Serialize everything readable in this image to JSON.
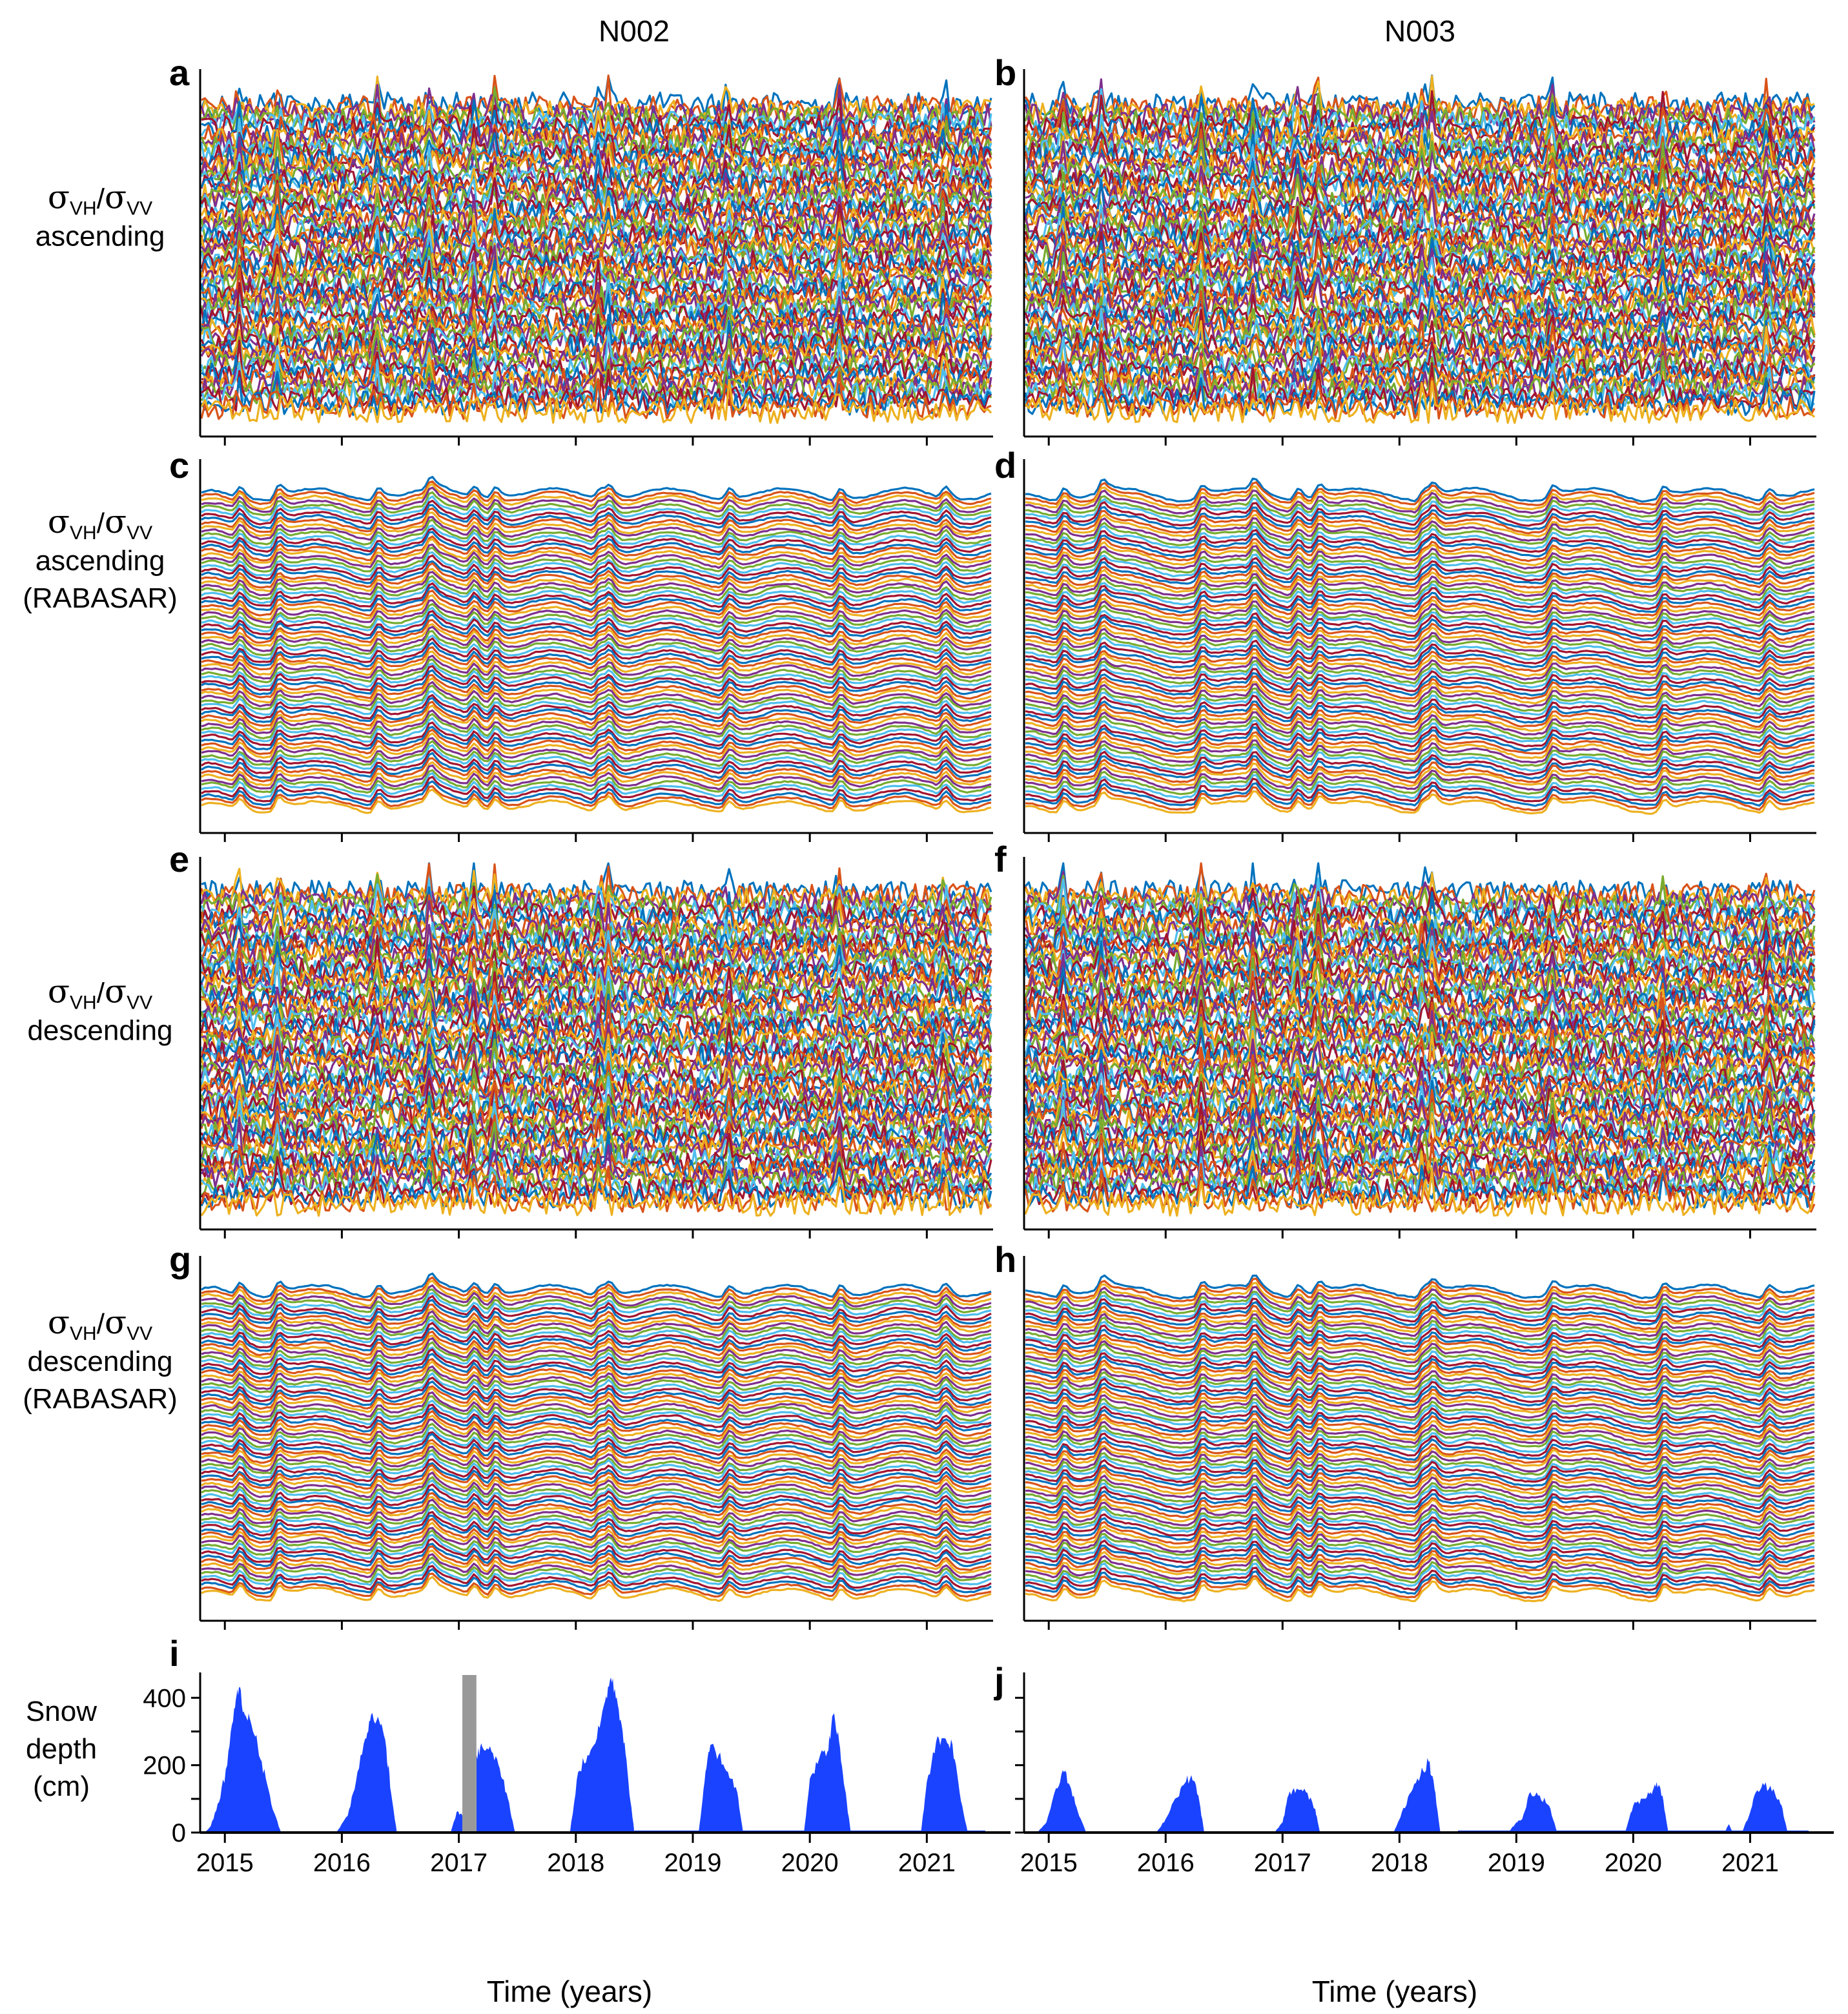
{
  "columns": [
    "N002",
    "N003"
  ],
  "chart_data": [
    {
      "panel": "a",
      "column": "N002",
      "type": "line",
      "ylabel_lines": [
        "σVH/σVV",
        "ascending"
      ],
      "series_count": 80,
      "xlim": [
        2014.8,
        2021.55
      ],
      "style": "raw"
    },
    {
      "panel": "b",
      "column": "N003",
      "type": "line",
      "ylabel_lines": [],
      "series_count": 80,
      "xlim": [
        2014.8,
        2021.55
      ],
      "style": "raw"
    },
    {
      "panel": "c",
      "column": "N002",
      "type": "line",
      "ylabel_lines": [
        "σVH/σVV",
        "ascending",
        "(RABASAR)"
      ],
      "series_count": 80,
      "xlim": [
        2014.8,
        2021.55
      ],
      "style": "filtered"
    },
    {
      "panel": "d",
      "column": "N003",
      "type": "line",
      "ylabel_lines": [],
      "series_count": 80,
      "xlim": [
        2014.8,
        2021.55
      ],
      "style": "filtered"
    },
    {
      "panel": "e",
      "column": "N002",
      "type": "line",
      "ylabel_lines": [
        "σVH/σVV",
        "descending"
      ],
      "series_count": 80,
      "xlim": [
        2014.8,
        2021.55
      ],
      "style": "raw"
    },
    {
      "panel": "f",
      "column": "N003",
      "type": "line",
      "ylabel_lines": [],
      "series_count": 80,
      "xlim": [
        2014.8,
        2021.55
      ],
      "style": "raw"
    },
    {
      "panel": "g",
      "column": "N002",
      "type": "line",
      "ylabel_lines": [
        "σVH/σVV",
        "descending",
        "(RABASAR)"
      ],
      "series_count": 80,
      "xlim": [
        2014.8,
        2021.55
      ],
      "style": "filtered"
    },
    {
      "panel": "h",
      "column": "N003",
      "type": "line",
      "ylabel_lines": [],
      "series_count": 80,
      "xlim": [
        2014.8,
        2021.55
      ],
      "style": "filtered"
    },
    {
      "panel": "i",
      "column": "N002",
      "type": "area",
      "ylabel_lines": [
        "Snow",
        "depth",
        "(cm)"
      ],
      "xlabel": "Time (years)",
      "xticks": [
        2015,
        2016,
        2017,
        2018,
        2019,
        2020,
        2021
      ],
      "yticks": [
        0,
        200,
        400
      ],
      "ylim": [
        0,
        460
      ],
      "xlim": [
        2014.8,
        2021.55
      ],
      "gap": {
        "x": [
          2017.03,
          2017.15
        ],
        "color": "#999999"
      },
      "seasons": [
        {
          "x": [
            2014.83,
            2014.88,
            2014.95,
            2015.02,
            2015.08,
            2015.12,
            2015.17,
            2015.22,
            2015.28,
            2015.35,
            2015.42,
            2015.48
          ],
          "y": [
            0,
            20,
            90,
            200,
            370,
            430,
            350,
            330,
            260,
            160,
            60,
            0
          ]
        },
        {
          "x": [
            2015.95,
            2016.05,
            2016.12,
            2016.2,
            2016.25,
            2016.32,
            2016.38,
            2016.42,
            2016.47
          ],
          "y": [
            0,
            50,
            150,
            280,
            350,
            330,
            250,
            120,
            0
          ]
        },
        {
          "x": [
            2016.93,
            2016.98,
            2017.03
          ],
          "y": [
            0,
            60,
            50
          ]
        },
        {
          "x": [
            2017.15,
            2017.2,
            2017.28,
            2017.35,
            2017.42,
            2017.48
          ],
          "y": [
            230,
            255,
            240,
            190,
            100,
            0
          ]
        },
        {
          "x": [
            2017.95,
            2018.02,
            2018.1,
            2018.18,
            2018.25,
            2018.3,
            2018.35,
            2018.4,
            2018.45,
            2018.5
          ],
          "y": [
            0,
            180,
            230,
            280,
            390,
            460,
            400,
            300,
            150,
            0
          ]
        },
        {
          "x": [
            2019.05,
            2019.1,
            2019.15,
            2019.22,
            2019.3,
            2019.38,
            2019.43
          ],
          "y": [
            0,
            150,
            260,
            230,
            180,
            120,
            0
          ]
        },
        {
          "x": [
            2019.95,
            2020.0,
            2020.08,
            2020.15,
            2020.2,
            2020.25,
            2020.3,
            2020.35
          ],
          "y": [
            0,
            160,
            220,
            240,
            350,
            270,
            130,
            0
          ]
        },
        {
          "x": [
            2020.95,
            2021.0,
            2021.08,
            2021.15,
            2021.22,
            2021.28,
            2021.35
          ],
          "y": [
            0,
            150,
            270,
            280,
            260,
            120,
            0
          ]
        }
      ]
    },
    {
      "panel": "j",
      "column": "N003",
      "type": "area",
      "ylabel_lines": [],
      "xlabel": "Time (years)",
      "xticks": [
        2015,
        2016,
        2017,
        2018,
        2019,
        2020,
        2021
      ],
      "ylim": [
        0,
        460
      ],
      "xlim": [
        2014.8,
        2021.55
      ],
      "seasons": [
        {
          "x": [
            2014.9,
            2014.98,
            2015.05,
            2015.12,
            2015.18,
            2015.25,
            2015.32
          ],
          "y": [
            0,
            30,
            120,
            185,
            140,
            60,
            0
          ]
        },
        {
          "x": [
            2015.92,
            2016.0,
            2016.08,
            2016.15,
            2016.22,
            2016.28,
            2016.33
          ],
          "y": [
            0,
            40,
            100,
            140,
            170,
            110,
            0
          ]
        },
        {
          "x": [
            2016.93,
            2017.0,
            2017.05,
            2017.12,
            2017.2,
            2017.28,
            2017.32
          ],
          "y": [
            0,
            30,
            110,
            130,
            120,
            70,
            0
          ]
        },
        {
          "x": [
            2017.95,
            2018.02,
            2018.1,
            2018.18,
            2018.25,
            2018.3,
            2018.35
          ],
          "y": [
            0,
            60,
            120,
            170,
            210,
            130,
            0
          ]
        },
        {
          "x": [
            2018.93,
            2019.0,
            2019.05,
            2019.12,
            2019.2,
            2019.28,
            2019.35
          ],
          "y": [
            0,
            30,
            40,
            120,
            110,
            80,
            0
          ]
        },
        {
          "x": [
            2019.93,
            2020.0,
            2020.08,
            2020.15,
            2020.2,
            2020.25,
            2020.3
          ],
          "y": [
            0,
            80,
            100,
            120,
            150,
            110,
            0
          ]
        },
        {
          "x": [
            2020.78,
            2020.82,
            2020.85
          ],
          "y": [
            0,
            25,
            0
          ]
        },
        {
          "x": [
            2020.93,
            2021.0,
            2021.05,
            2021.12,
            2021.2,
            2021.27,
            2021.32
          ],
          "y": [
            0,
            60,
            120,
            140,
            130,
            80,
            0
          ]
        }
      ]
    }
  ],
  "palette": [
    "#0072BD",
    "#D95319",
    "#EDB120",
    "#7E2F8E",
    "#77AC30",
    "#4DBEEE",
    "#A2142F"
  ],
  "snow_color": "#1a43ff",
  "gap_color": "#999999",
  "axis_color": "#000000"
}
